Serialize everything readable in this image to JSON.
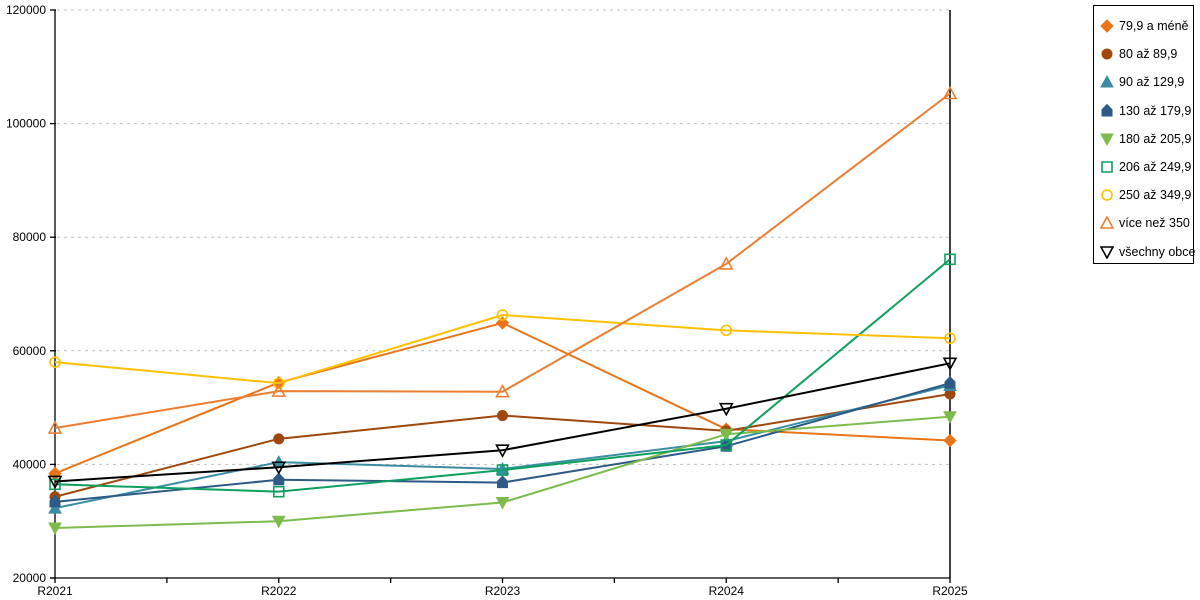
{
  "chart_data": {
    "type": "line",
    "title": "",
    "xlabel": "",
    "ylabel": "",
    "categories": [
      "R2021",
      "R2022",
      "R2023",
      "R2024",
      "R2025"
    ],
    "y_ticks": [
      20000,
      40000,
      60000,
      80000,
      100000,
      120000
    ],
    "ylim": [
      20000,
      120000
    ],
    "grid": "horizontal-dashed",
    "legend_position": "right-outside",
    "series": [
      {
        "name": "79,9 a méně",
        "color": "#E8751A",
        "marker": "diamond",
        "marker_fill": "filled",
        "values": [
          38400,
          54400,
          64900,
          46200,
          44200
        ]
      },
      {
        "name": "80 až 89,9",
        "color": "#9E480E",
        "marker": "circle",
        "marker_fill": "filled",
        "values": [
          34300,
          44500,
          48600,
          45900,
          52400
        ]
      },
      {
        "name": "90 až 129,9",
        "color": "#3C8DA3",
        "marker": "triangle-up",
        "marker_fill": "filled",
        "values": [
          32300,
          40400,
          39200,
          44100,
          53900
        ]
      },
      {
        "name": "130 až 179,9",
        "color": "#2E5A87",
        "marker": "pentagon",
        "marker_fill": "filled",
        "values": [
          33400,
          37300,
          36800,
          43200,
          54300
        ]
      },
      {
        "name": "180 až 205,9",
        "color": "#7CBB4C",
        "marker": "triangle-down",
        "marker_fill": "filled",
        "values": [
          28800,
          30000,
          33300,
          45300,
          48400
        ]
      },
      {
        "name": "206 až 249,9",
        "color": "#0DA05F",
        "marker": "square",
        "marker_fill": "open",
        "values": [
          36500,
          35200,
          39000,
          43400,
          76100
        ]
      },
      {
        "name": "250 až 349,9",
        "color": "#FFC000",
        "marker": "circle",
        "marker_fill": "open",
        "values": [
          58000,
          54300,
          66300,
          63600,
          62200
        ]
      },
      {
        "name": "více než 350",
        "color": "#ED7D31",
        "marker": "triangle-up",
        "marker_fill": "open",
        "values": [
          46400,
          52900,
          52800,
          75300,
          105300
        ]
      },
      {
        "name": "všechny obce",
        "color": "#000000",
        "marker": "triangle-down",
        "marker_fill": "open",
        "values": [
          37000,
          39500,
          42500,
          49800,
          57800
        ]
      }
    ],
    "colors": {
      "gridline": "#BFBFBF",
      "axis": "#000000",
      "background": "#FFFFFF"
    }
  }
}
